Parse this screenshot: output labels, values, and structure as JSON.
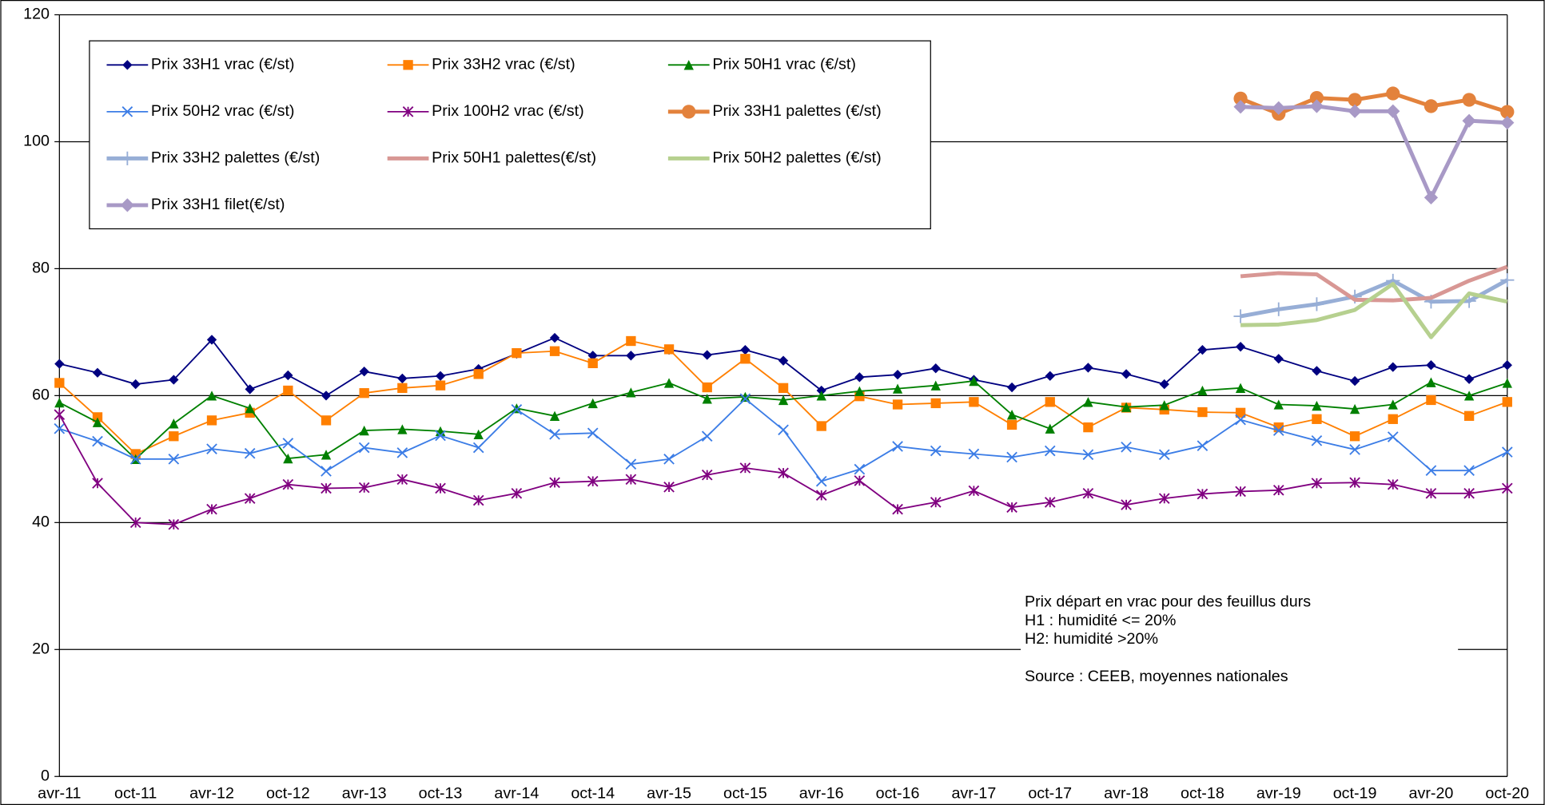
{
  "chart_data": {
    "type": "line",
    "categories": [
      "avr-11",
      null,
      "oct-11",
      null,
      "avr-12",
      null,
      "oct-12",
      null,
      "avr-13",
      null,
      "oct-13",
      null,
      "avr-14",
      null,
      "oct-14",
      null,
      "avr-15",
      null,
      "oct-15",
      null,
      "avr-16",
      null,
      "oct-16",
      null,
      "avr-17",
      null,
      "oct-17",
      null,
      "avr-18",
      null,
      "oct-18",
      null,
      "avr-19",
      null,
      "oct-19",
      null,
      "avr-20",
      null,
      "oct-20"
    ],
    "ylim": [
      0,
      120
    ],
    "yticks": [
      0,
      20,
      40,
      60,
      80,
      100,
      120
    ],
    "grid": true,
    "series": [
      {
        "name": "Prix 33H1 vrac (€/st)",
        "color": "#000080",
        "marker": "diamond",
        "width": 1.5,
        "values": [
          65,
          63.6,
          61.8,
          62.5,
          68.8,
          61,
          63.2,
          60,
          63.8,
          62.7,
          63.1,
          64.2,
          66.6,
          69.1,
          66.3,
          66.3,
          67.2,
          66.4,
          67.2,
          65.5,
          60.8,
          62.9,
          63.3,
          64.3,
          62.5,
          61.3,
          63.1,
          64.4,
          63.4,
          61.8,
          67.2,
          67.7,
          65.8,
          63.9,
          62.3,
          64.5,
          64.8,
          62.6,
          64.8
        ]
      },
      {
        "name": "Prix 33H2 vrac (€/st)",
        "color": "#ff7f00",
        "marker": "square",
        "width": 1.5,
        "values": [
          62,
          56.6,
          50.8,
          53.6,
          56.1,
          57.3,
          60.8,
          56.1,
          60.4,
          61.2,
          61.6,
          63.4,
          66.7,
          67,
          65.1,
          68.6,
          67.3,
          61.3,
          65.8,
          61.2,
          55.2,
          59.9,
          58.6,
          58.8,
          59,
          55.4,
          59,
          55,
          58.1,
          57.8,
          57.4,
          57.3,
          55,
          56.3,
          53.6,
          56.3,
          59.3,
          56.8,
          59
        ]
      },
      {
        "name": "Prix 50H1 vrac (€/st)",
        "color": "#008000",
        "marker": "triangle",
        "width": 1.5,
        "values": [
          58.9,
          55.8,
          50,
          55.6,
          60,
          58,
          50.1,
          50.7,
          54.5,
          54.7,
          54.4,
          53.9,
          58,
          56.8,
          58.8,
          60.5,
          62,
          59.5,
          59.8,
          59.3,
          60,
          60.7,
          61.1,
          61.6,
          62.3,
          57,
          54.8,
          59,
          58.2,
          58.5,
          60.8,
          61.2,
          58.6,
          58.4,
          57.9,
          58.6,
          62.1,
          60,
          62
        ]
      },
      {
        "name": "Prix 50H2 vrac (€/st)",
        "color": "#3c7de6",
        "marker": "x",
        "width": 1.5,
        "values": [
          54.8,
          52.8,
          50,
          50,
          51.6,
          50.9,
          52.5,
          48.1,
          51.8,
          51,
          53.7,
          51.8,
          57.8,
          53.9,
          54.1,
          49.2,
          50,
          53.6,
          59.5,
          54.6,
          46.5,
          48.4,
          52,
          51.3,
          50.8,
          50.3,
          51.3,
          50.7,
          51.9,
          50.7,
          52.1,
          56.2,
          54.5,
          52.9,
          51.5,
          53.5,
          48.2,
          48.2,
          51.1
        ]
      },
      {
        "name": "Prix 100H2 vrac (€/st)",
        "color": "#800080",
        "marker": "star",
        "width": 1.5,
        "values": [
          57,
          46.2,
          40,
          39.7,
          42.1,
          43.8,
          46,
          45.4,
          45.5,
          46.8,
          45.4,
          43.5,
          44.6,
          46.3,
          46.5,
          46.8,
          45.6,
          47.5,
          48.6,
          47.8,
          44.3,
          46.6,
          42.1,
          43.2,
          45,
          42.4,
          43.2,
          44.6,
          42.8,
          43.8,
          44.5,
          44.9,
          45.1,
          46.2,
          46.3,
          46,
          44.6,
          44.6,
          45.4
        ]
      },
      {
        "name": "Prix 33H1 palettes (€/st)",
        "color": "#e3823c",
        "marker": "circle",
        "width": 4,
        "values": [
          null,
          null,
          null,
          null,
          null,
          null,
          null,
          null,
          null,
          null,
          null,
          null,
          null,
          null,
          null,
          null,
          null,
          null,
          null,
          null,
          null,
          null,
          null,
          null,
          null,
          null,
          null,
          null,
          null,
          null,
          null,
          106.8,
          104.4,
          106.9,
          106.6,
          107.6,
          105.6,
          106.6,
          104.7
        ]
      },
      {
        "name": "Prix 33H2 palettes (€/st)",
        "color": "#97aed6",
        "marker": "plus",
        "width": 4,
        "values": [
          null,
          null,
          null,
          null,
          null,
          null,
          null,
          null,
          null,
          null,
          null,
          null,
          null,
          null,
          null,
          null,
          null,
          null,
          null,
          null,
          null,
          null,
          null,
          null,
          null,
          null,
          null,
          null,
          null,
          null,
          null,
          72.5,
          73.6,
          74.4,
          75.6,
          78.1,
          74.8,
          74.9,
          78.2
        ]
      },
      {
        "name": "Prix 50H1 palettes(€/st)",
        "color": "#d89794",
        "marker": "none",
        "width": 4,
        "values": [
          null,
          null,
          null,
          null,
          null,
          null,
          null,
          null,
          null,
          null,
          null,
          null,
          null,
          null,
          null,
          null,
          null,
          null,
          null,
          null,
          null,
          null,
          null,
          null,
          null,
          null,
          null,
          null,
          null,
          null,
          null,
          78.8,
          79.3,
          79.1,
          75.1,
          75,
          75.4,
          78.1,
          80.3
        ]
      },
      {
        "name": "Prix 50H2 palettes (€/st)",
        "color": "#b6d08f",
        "marker": "none",
        "width": 4,
        "values": [
          null,
          null,
          null,
          null,
          null,
          null,
          null,
          null,
          null,
          null,
          null,
          null,
          null,
          null,
          null,
          null,
          null,
          null,
          null,
          null,
          null,
          null,
          null,
          null,
          null,
          null,
          null,
          null,
          null,
          null,
          null,
          71.1,
          71.2,
          71.9,
          73.5,
          77.6,
          69.2,
          76.1,
          74.8
        ]
      },
      {
        "name": "Prix 33H1 filet(€/st)",
        "color": "#a899c6",
        "marker": "diamond",
        "width": 4,
        "values": [
          null,
          null,
          null,
          null,
          null,
          null,
          null,
          null,
          null,
          null,
          null,
          null,
          null,
          null,
          null,
          null,
          null,
          null,
          null,
          null,
          null,
          null,
          null,
          null,
          null,
          null,
          null,
          null,
          null,
          null,
          null,
          105.5,
          105.3,
          105.6,
          104.8,
          104.8,
          91.2,
          103.3,
          103
        ]
      }
    ],
    "annotation": [
      "Prix départ en vrac pour des feuillus durs",
      "H1 : humidité <= 20%",
      "H2: humidité >20%",
      "",
      "Source : CEEB, moyennes nationales"
    ]
  }
}
